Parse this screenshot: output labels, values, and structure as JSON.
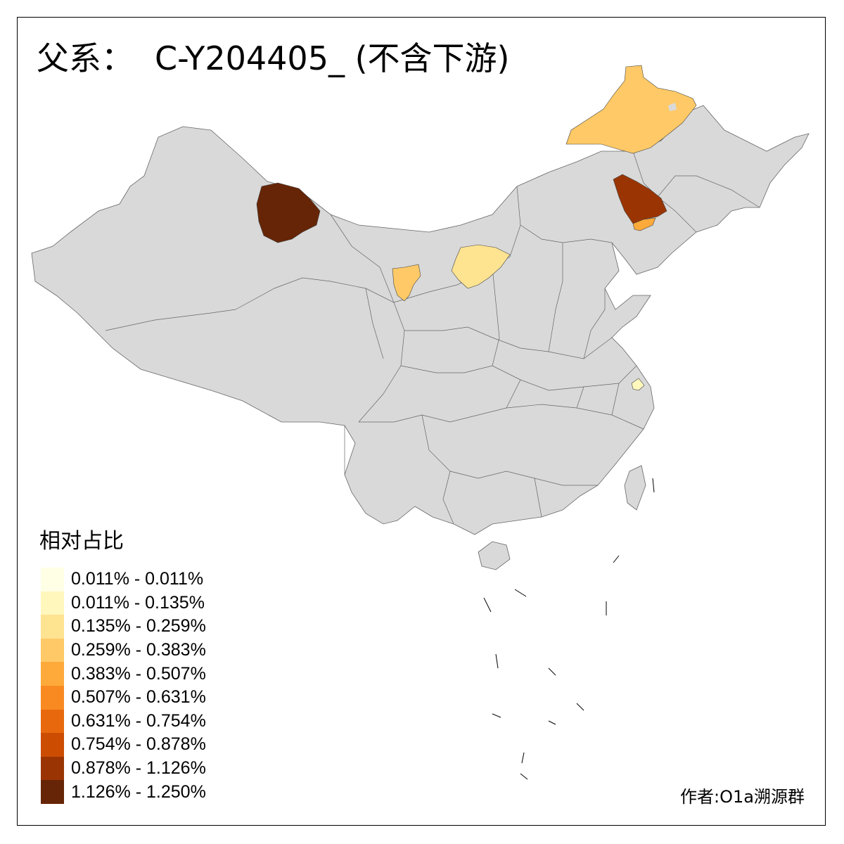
{
  "title": {
    "prefix": "父系：",
    "haplogroup": "C-Y204405_ (不含下游)"
  },
  "legend": {
    "title": "相对占比",
    "items": [
      {
        "label": "0.011% - 0.011%",
        "color": "#FFFFE5"
      },
      {
        "label": "0.011% - 0.135%",
        "color": "#FFF7BC"
      },
      {
        "label": "0.135% - 0.259%",
        "color": "#FEE391"
      },
      {
        "label": "0.259% - 0.383%",
        "color": "#FEC966"
      },
      {
        "label": "0.383% - 0.507%",
        "color": "#FEAA3A"
      },
      {
        "label": "0.507% - 0.631%",
        "color": "#F98A21"
      },
      {
        "label": "0.631% - 0.754%",
        "color": "#E8690D"
      },
      {
        "label": "0.754% - 0.878%",
        "color": "#CC4C02"
      },
      {
        "label": "0.878% - 1.126%",
        "color": "#9A3503"
      },
      {
        "label": "1.126% - 1.250%",
        "color": "#662506"
      }
    ]
  },
  "regions": {
    "base_color": "#D9D9D9",
    "highlighted": [
      {
        "id": "north-xinjiang",
        "color": "#662506"
      },
      {
        "id": "hulunbuir",
        "color": "#FEC966"
      },
      {
        "id": "northern-liaoning",
        "color": "#9A3503"
      },
      {
        "id": "liaoning-small",
        "color": "#FEAA3A"
      },
      {
        "id": "ordos",
        "color": "#FEE391"
      },
      {
        "id": "gansu-hexi",
        "color": "#FEC966"
      },
      {
        "id": "zhejiang-coast",
        "color": "#FFF7BC"
      }
    ]
  },
  "author": "作者:O1a溯源群"
}
